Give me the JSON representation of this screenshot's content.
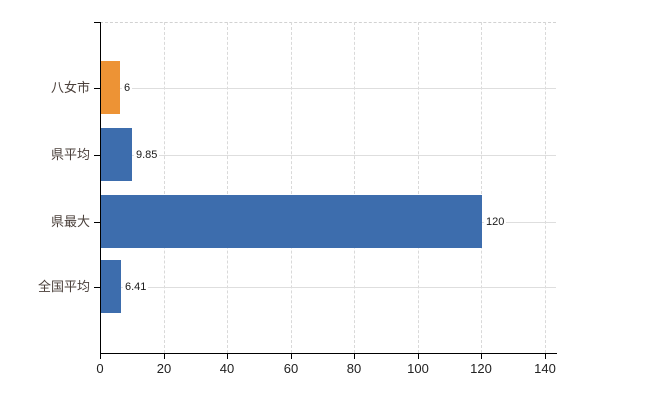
{
  "chart_data": {
    "type": "bar",
    "orientation": "horizontal",
    "title": "",
    "xlabel": "",
    "ylabel": "",
    "categories": [
      "八女市",
      "県平均",
      "県最大",
      "全国平均"
    ],
    "values": [
      6,
      9.85,
      120,
      6.41
    ],
    "value_labels": [
      "6",
      "9.85",
      "120",
      "6.41"
    ],
    "series": [
      {
        "name": "値",
        "values": [
          6,
          9.85,
          120,
          6.41
        ]
      }
    ],
    "bar_colors": [
      "#ED9335",
      "#3D6DAD",
      "#3D6DAD",
      "#3D6DAD"
    ],
    "xlim": [
      0,
      140
    ],
    "x_ticks": [
      0,
      20,
      40,
      60,
      80,
      100,
      120,
      140
    ],
    "grid": true,
    "grid_style": "dashed-vertical-solid-horizontal",
    "legend": false
  },
  "colors": {
    "bar_orange": "#ED9335",
    "bar_blue": "#3D6DAD",
    "axis": "#000000",
    "gridline": "#D9D9D9",
    "category_label": "#4A3F3A",
    "tick_label": "#222222",
    "background": "#FFFFFF"
  }
}
